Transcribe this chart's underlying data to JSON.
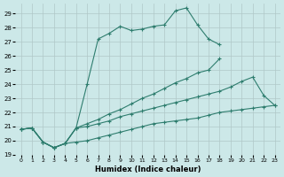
{
  "xlabel": "Humidex (Indice chaleur)",
  "background_color": "#cce8e8",
  "grid_color": "#b0c8c8",
  "line_color": "#2e7d6e",
  "xlim": [
    -0.5,
    23.5
  ],
  "ylim": [
    19,
    29.7
  ],
  "xticks": [
    0,
    1,
    2,
    3,
    4,
    5,
    6,
    7,
    8,
    9,
    10,
    11,
    12,
    13,
    14,
    15,
    16,
    17,
    18,
    19,
    20,
    21,
    22,
    23
  ],
  "yticks": [
    19,
    20,
    21,
    22,
    23,
    24,
    25,
    26,
    27,
    28,
    29
  ],
  "series": [
    {
      "x": [
        0,
        1,
        2,
        3,
        4,
        5,
        6,
        7,
        8,
        9,
        10,
        11,
        12,
        13,
        14,
        15,
        16,
        17,
        18
      ],
      "y": [
        20.8,
        20.9,
        19.9,
        19.5,
        19.8,
        20.9,
        24.0,
        27.2,
        27.6,
        28.1,
        27.8,
        27.9,
        28.1,
        28.2,
        29.2,
        29.4,
        28.2,
        27.2,
        26.8
      ]
    },
    {
      "x": [
        0,
        1,
        2,
        3,
        4,
        5,
        6,
        7,
        8,
        9,
        10,
        11,
        12,
        13,
        14,
        15,
        16,
        17,
        18,
        19,
        20,
        21,
        22,
        23
      ],
      "y": [
        20.8,
        20.9,
        19.9,
        19.5,
        19.8,
        20.9,
        21.2,
        21.5,
        21.9,
        22.2,
        22.6,
        23.0,
        23.3,
        23.7,
        24.1,
        24.4,
        24.8,
        25.0,
        25.8,
        null,
        null,
        null,
        null,
        null
      ]
    },
    {
      "x": [
        0,
        1,
        2,
        3,
        4,
        5,
        6,
        7,
        8,
        9,
        10,
        11,
        12,
        13,
        14,
        15,
        16,
        17,
        18,
        19,
        20,
        21,
        22,
        23
      ],
      "y": [
        20.8,
        20.9,
        19.9,
        19.5,
        19.8,
        20.9,
        21.0,
        21.2,
        21.4,
        21.7,
        21.9,
        22.1,
        22.3,
        22.5,
        22.7,
        22.9,
        23.1,
        23.3,
        23.5,
        23.8,
        24.2,
        24.5,
        23.2,
        22.5
      ]
    },
    {
      "x": [
        0,
        1,
        2,
        3,
        4,
        5,
        6,
        7,
        8,
        9,
        10,
        11,
        12,
        13,
        14,
        15,
        16,
        17,
        18,
        19,
        20,
        21,
        22,
        23
      ],
      "y": [
        20.8,
        20.9,
        19.9,
        19.5,
        19.8,
        19.9,
        20.0,
        20.2,
        20.4,
        20.6,
        20.8,
        21.0,
        21.2,
        21.3,
        21.4,
        21.5,
        21.6,
        21.8,
        22.0,
        22.1,
        22.2,
        22.3,
        22.4,
        22.5
      ]
    }
  ]
}
